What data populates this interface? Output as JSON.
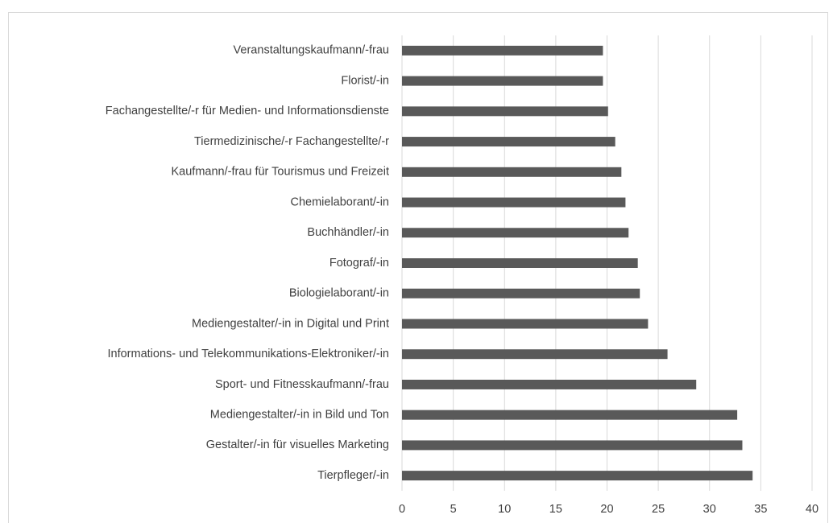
{
  "chart_data": {
    "type": "hbar",
    "categories": [
      "Veranstaltungskaufmann/-frau",
      "Florist/-in",
      "Fachangestellte/-r für Medien- und Informationsdienste",
      "Tiermedizinische/-r Fachangestellte/-r",
      "Kaufmann/-frau für Tourismus und Freizeit",
      "Chemielaborant/-in",
      "Buchhändler/-in",
      "Fotograf/-in",
      "Biologielaborant/-in",
      "Mediengestalter/-in in Digital und Print",
      "Informations- und Telekommunikations-Elektroniker/-in",
      "Sport- und Fitnesskaufmann/-frau",
      "Mediengestalter/-in in Bild und Ton",
      "Gestalter/-in für visuelles Marketing",
      "Tierpfleger/-in"
    ],
    "values": [
      19.6,
      19.6,
      20.1,
      20.8,
      21.4,
      21.8,
      22.1,
      23.0,
      23.2,
      24.0,
      25.9,
      28.7,
      32.7,
      33.2,
      34.2
    ],
    "color": "#595959",
    "xlim": [
      0,
      40
    ],
    "xticks": [
      0,
      5,
      10,
      15,
      20,
      25,
      30,
      35,
      40
    ],
    "grid": true
  }
}
